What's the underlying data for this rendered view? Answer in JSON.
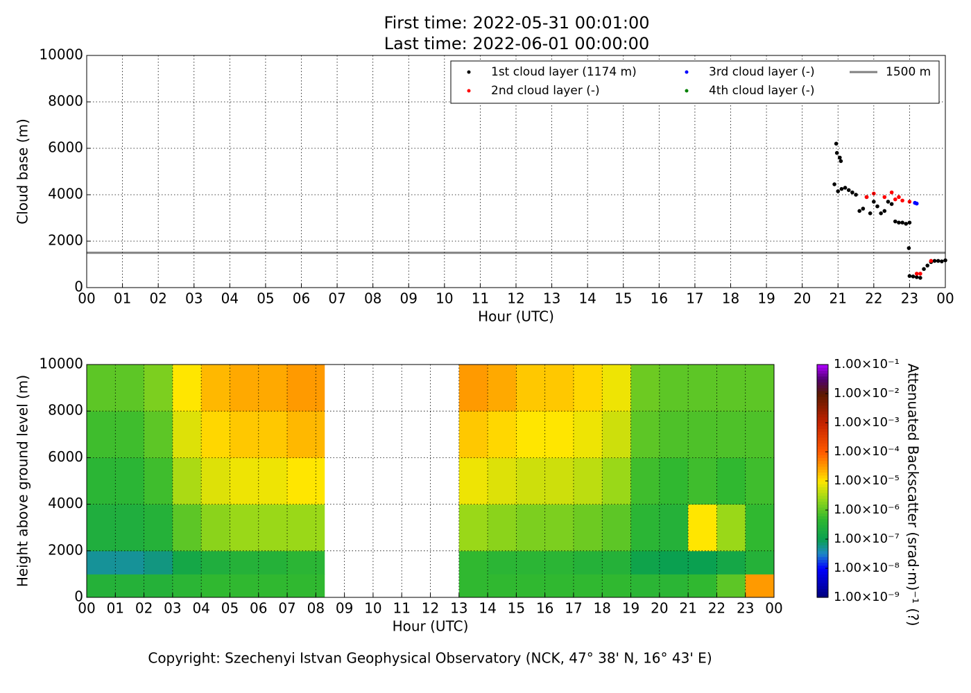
{
  "chart_data": [
    {
      "type": "scatter",
      "title": [
        "First time: 2022-05-31 00:01:00",
        "Last time: 2022-06-01 00:00:00"
      ],
      "xlabel": "Hour (UTC)",
      "ylabel": "Cloud base (m)",
      "xlim": [
        0,
        24
      ],
      "ylim": [
        0,
        10000
      ],
      "xticks": [
        {
          "value": 0,
          "label": "00"
        },
        {
          "value": 1,
          "label": "01"
        },
        {
          "value": 2,
          "label": "02"
        },
        {
          "value": 3,
          "label": "03"
        },
        {
          "value": 4,
          "label": "04"
        },
        {
          "value": 5,
          "label": "05"
        },
        {
          "value": 6,
          "label": "06"
        },
        {
          "value": 7,
          "label": "07"
        },
        {
          "value": 8,
          "label": "08"
        },
        {
          "value": 9,
          "label": "09"
        },
        {
          "value": 10,
          "label": "10"
        },
        {
          "value": 11,
          "label": "11"
        },
        {
          "value": 12,
          "label": "12"
        },
        {
          "value": 13,
          "label": "13"
        },
        {
          "value": 14,
          "label": "14"
        },
        {
          "value": 15,
          "label": "15"
        },
        {
          "value": 16,
          "label": "16"
        },
        {
          "value": 17,
          "label": "17"
        },
        {
          "value": 18,
          "label": "18"
        },
        {
          "value": 19,
          "label": "19"
        },
        {
          "value": 20,
          "label": "20"
        },
        {
          "value": 21,
          "label": "21"
        },
        {
          "value": 22,
          "label": "22"
        },
        {
          "value": 23,
          "label": "23"
        },
        {
          "value": 24,
          "label": "00"
        }
      ],
      "yticks": [
        0,
        2000,
        4000,
        6000,
        8000,
        10000
      ],
      "grid": true,
      "legend": "upper right",
      "series": [
        {
          "name": "1st cloud layer (1174 m)",
          "color": "#000000",
          "x": [
            20.9,
            20.95,
            20.97,
            21.05,
            21.08,
            21.0,
            21.1,
            21.2,
            21.3,
            21.4,
            21.5,
            21.6,
            21.7,
            21.8,
            21.9,
            22.0,
            22.1,
            22.2,
            22.3,
            22.4,
            22.5,
            22.6,
            22.7,
            22.8,
            22.9,
            23.0,
            22.98,
            23.0,
            23.1,
            23.2,
            23.3,
            23.4,
            23.5,
            23.6,
            23.7,
            23.8,
            23.9,
            24.0
          ],
          "values": [
            4450,
            6200,
            5800,
            5600,
            5450,
            4150,
            4250,
            4300,
            4200,
            4100,
            4000,
            3300,
            3400,
            3900,
            3200,
            3700,
            3500,
            3200,
            3300,
            3700,
            3600,
            2850,
            2800,
            2800,
            2750,
            2800,
            1700,
            500,
            480,
            450,
            420,
            800,
            950,
            1100,
            1150,
            1150,
            1130,
            1174
          ]
        },
        {
          "name": "2nd cloud layer (-)",
          "color": "#ff0000",
          "x": [
            21.8,
            22.0,
            22.3,
            22.5,
            22.6,
            22.7,
            22.8,
            23.0,
            23.2,
            23.3,
            23.6
          ],
          "values": [
            3900,
            4050,
            3900,
            4100,
            3800,
            3900,
            3750,
            3700,
            600,
            600,
            1150
          ]
        },
        {
          "name": "3rd cloud layer (-)",
          "color": "#0000ff",
          "x": [
            23.15,
            23.2
          ],
          "values": [
            3650,
            3620
          ]
        },
        {
          "name": "4th cloud layer (-)",
          "color": "#008000",
          "x": [],
          "values": []
        }
      ],
      "hlines": [
        {
          "name": "1500 m",
          "value": 1500,
          "color": "#808080"
        }
      ]
    },
    {
      "type": "heatmap",
      "xlabel": "Hour (UTC)",
      "ylabel": "Height above ground level (m)",
      "colorbar_label": "Attenuated Backscatter (srad·m)⁻¹ (?)",
      "xlim": [
        0,
        24
      ],
      "ylim": [
        0,
        10000
      ],
      "xticks": [
        {
          "value": 0,
          "label": "00"
        },
        {
          "value": 1,
          "label": "01"
        },
        {
          "value": 2,
          "label": "02"
        },
        {
          "value": 3,
          "label": "03"
        },
        {
          "value": 4,
          "label": "04"
        },
        {
          "value": 5,
          "label": "05"
        },
        {
          "value": 6,
          "label": "06"
        },
        {
          "value": 7,
          "label": "07"
        },
        {
          "value": 8,
          "label": "08"
        },
        {
          "value": 9,
          "label": "09"
        },
        {
          "value": 10,
          "label": "10"
        },
        {
          "value": 11,
          "label": "11"
        },
        {
          "value": 12,
          "label": "12"
        },
        {
          "value": 13,
          "label": "13"
        },
        {
          "value": 14,
          "label": "14"
        },
        {
          "value": 15,
          "label": "15"
        },
        {
          "value": 16,
          "label": "16"
        },
        {
          "value": 17,
          "label": "17"
        },
        {
          "value": 18,
          "label": "18"
        },
        {
          "value": 19,
          "label": "19"
        },
        {
          "value": 20,
          "label": "20"
        },
        {
          "value": 21,
          "label": "21"
        },
        {
          "value": 22,
          "label": "22"
        },
        {
          "value": 23,
          "label": "23"
        },
        {
          "value": 24,
          "label": "00"
        }
      ],
      "yticks": [
        0,
        2000,
        4000,
        6000,
        8000,
        10000
      ],
      "grid": true,
      "x_edges": [
        0,
        1,
        2,
        3,
        4,
        5,
        6,
        7,
        8,
        8.3,
        13,
        14,
        15,
        16,
        17,
        18,
        19,
        20,
        21,
        22,
        23,
        24
      ],
      "y_edges": [
        0,
        1000,
        2000,
        4000,
        6000,
        8000,
        10000
      ],
      "values": [
        [
          -6.5,
          -7.3,
          -6.6,
          -6.4,
          -6.2,
          -6.0
        ],
        [
          -6.5,
          -7.3,
          -6.6,
          -6.4,
          -6.2,
          -6.0
        ],
        [
          -6.5,
          -7.2,
          -6.5,
          -6.2,
          -6.0,
          -5.8
        ],
        [
          -6.4,
          -6.8,
          -6.0,
          -5.5,
          -5.2,
          -5.0
        ],
        [
          -6.3,
          -6.6,
          -5.7,
          -5.2,
          -4.9,
          -4.7
        ],
        [
          -6.3,
          -6.5,
          -5.6,
          -5.1,
          -4.8,
          -4.6
        ],
        [
          -6.3,
          -6.5,
          -5.6,
          -5.1,
          -4.8,
          -4.6
        ],
        [
          -6.3,
          -6.4,
          -5.6,
          -5.0,
          -4.7,
          -4.5
        ],
        [
          -6.3,
          -6.4,
          -5.6,
          -5.0,
          -4.7,
          -4.5
        ],
        [
          null,
          null,
          null,
          null,
          null,
          null
        ],
        [
          -6.3,
          -6.3,
          -5.6,
          -5.1,
          -4.8,
          -4.5
        ],
        [
          -6.3,
          -6.4,
          -5.7,
          -5.2,
          -4.9,
          -4.6
        ],
        [
          -6.3,
          -6.4,
          -5.8,
          -5.3,
          -5.0,
          -4.8
        ],
        [
          -6.3,
          -6.4,
          -5.8,
          -5.3,
          -5.0,
          -4.8
        ],
        [
          -6.3,
          -6.5,
          -5.9,
          -5.4,
          -5.1,
          -4.9
        ],
        [
          -6.3,
          -6.5,
          -6.0,
          -5.6,
          -5.3,
          -5.1
        ],
        [
          -6.4,
          -6.9,
          -6.4,
          -6.2,
          -6.0,
          -5.9
        ],
        [
          -6.4,
          -7.0,
          -6.5,
          -6.3,
          -6.1,
          -6.0
        ],
        [
          -6.3,
          -7.0,
          -5.0,
          -6.2,
          -6.1,
          -6.0
        ],
        [
          -6.0,
          -6.8,
          -5.6,
          -6.3,
          -6.1,
          -6.0
        ],
        [
          -4.5,
          -6.5,
          -6.3,
          -6.2,
          -6.1,
          -6.0
        ]
      ],
      "clim": [
        -9,
        -1
      ],
      "cticks": [
        {
          "value": -1,
          "label": "1.00×10⁻¹"
        },
        {
          "value": -2,
          "label": "1.00×10⁻²"
        },
        {
          "value": -3,
          "label": "1.00×10⁻³"
        },
        {
          "value": -4,
          "label": "1.00×10⁻⁴"
        },
        {
          "value": -5,
          "label": "1.00×10⁻⁵"
        },
        {
          "value": -6,
          "label": "1.00×10⁻⁶"
        },
        {
          "value": -7,
          "label": "1.00×10⁻⁷"
        },
        {
          "value": -8,
          "label": "1.00×10⁻⁸"
        },
        {
          "value": -9,
          "label": "1.00×10⁻⁹"
        }
      ]
    }
  ],
  "footer": "Copyright: Szechenyi Istvan Geophysical Observatory (NCK, 47° 38' N, 16° 43' E)"
}
